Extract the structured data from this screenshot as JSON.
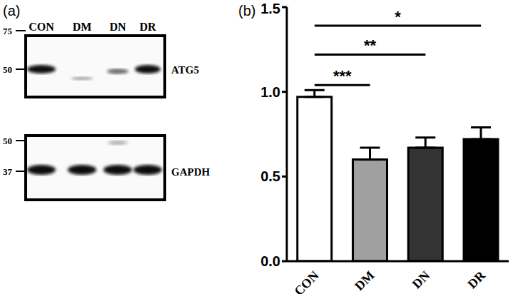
{
  "blot": {
    "label": "(a)",
    "lanes": [
      "CON",
      "DM",
      "DN",
      "DR"
    ],
    "rows": [
      {
        "protein": "ATG5",
        "markers": [
          75,
          50
        ]
      },
      {
        "protein": "GAPDH",
        "markers": [
          50,
          37
        ]
      }
    ]
  },
  "chart_data": {
    "type": "bar",
    "title": "(b)",
    "categories": [
      "CON",
      "DM",
      "DN",
      "DR"
    ],
    "values": [
      0.97,
      0.6,
      0.67,
      0.72
    ],
    "errors": [
      0.04,
      0.07,
      0.06,
      0.07
    ],
    "colors": [
      "#ffffff",
      "#a0a0a0",
      "#333333",
      "#000000"
    ],
    "ylim": [
      0,
      1.5
    ],
    "yticks": [
      {
        "value": 0,
        "label": "0.0"
      },
      {
        "value": 0.5,
        "label": "0.5"
      },
      {
        "value": 1,
        "label": "1.0"
      },
      {
        "value": 1.5,
        "label": "1.5"
      }
    ],
    "annotations": [
      {
        "from": "CON",
        "to": "DM",
        "label": "***"
      },
      {
        "from": "CON",
        "to": "DN",
        "label": "**"
      },
      {
        "from": "CON",
        "to": "DR",
        "label": "*"
      }
    ]
  }
}
